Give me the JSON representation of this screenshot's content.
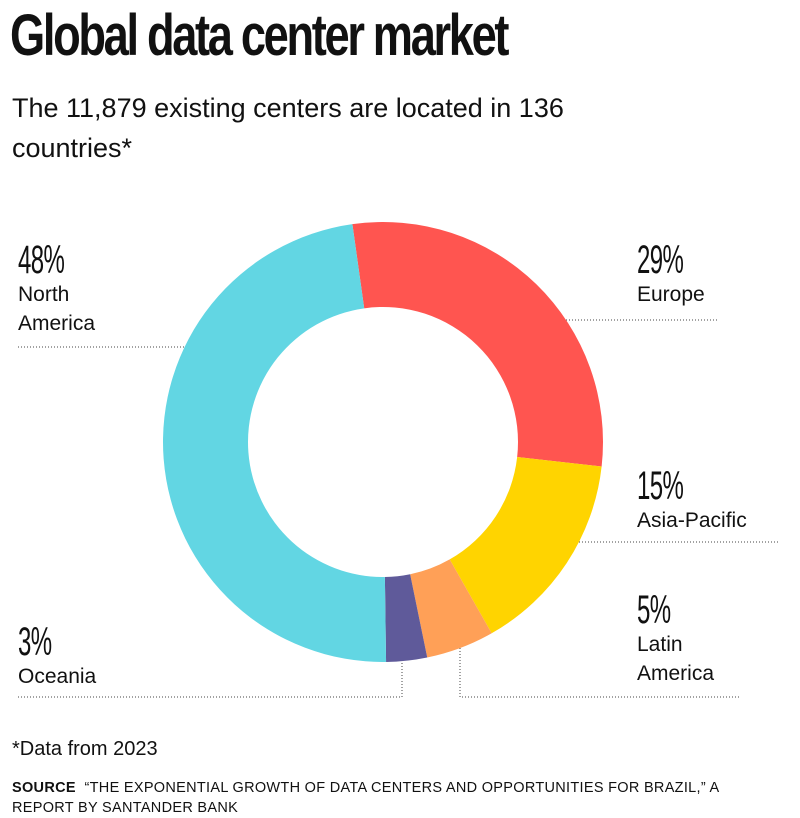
{
  "chart_data": {
    "type": "pie",
    "title": "Global data center market",
    "subtitle": "The 11,879 existing centers are located in 136 countries*",
    "categories": [
      "Europe",
      "Asia-Pacific",
      "Latin America",
      "Oceania",
      "North America"
    ],
    "values": [
      29,
      15,
      5,
      3,
      48
    ],
    "value_labels": [
      "29%",
      "15%",
      "5%",
      "3%",
      "48%"
    ],
    "colors": [
      "#ff5550",
      "#ffd400",
      "#ffa057",
      "#5f5a9a",
      "#62d6e3"
    ],
    "footnote": "*Data from 2023",
    "source_label": "SOURCE",
    "source": "“THE EXPONENTIAL GROWTH OF DATA CENTERS AND OPPORTUNITIES FOR BRAZIL,” A REPORT BY SANTANDER BANK"
  }
}
